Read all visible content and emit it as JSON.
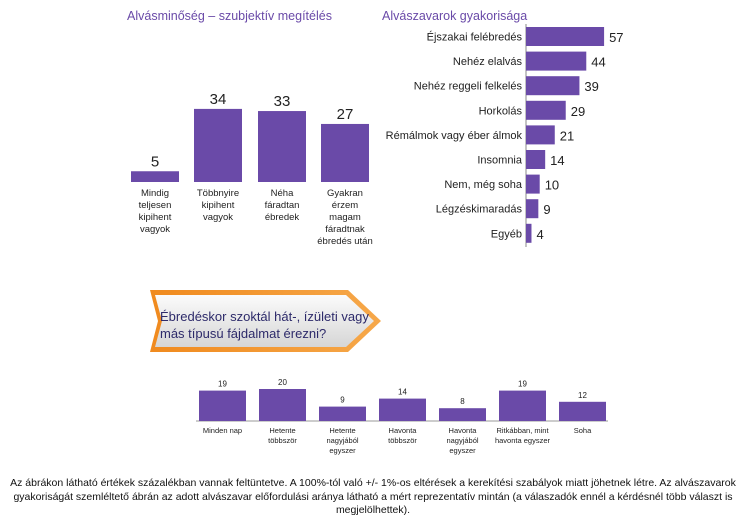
{
  "color_bar": "#6a4aa8",
  "chart_data": [
    {
      "type": "bar",
      "title": "Alvásminőség – szubjektív megítélés",
      "categories": [
        "Mindig teljesen kipihent vagyok",
        "Többnyire kipihent vagyok",
        "Néha fáradtan ébredek",
        "Gyakran érzem magam fáradtnak ébredés után"
      ],
      "category_lines": [
        [
          "Mindig",
          "teljesen",
          "kipihent",
          "vagyok"
        ],
        [
          "Többnyire",
          "kipihent",
          "vagyok"
        ],
        [
          "Néha",
          "fáradtan",
          "ébredek"
        ],
        [
          "Gyakran",
          "érzem",
          "magam",
          "fáradtnak",
          "ébredés után"
        ]
      ],
      "values": [
        5,
        34,
        33,
        27
      ]
    },
    {
      "type": "bar",
      "orientation": "horizontal",
      "title": "Alvászavarok gyakorisága",
      "categories": [
        "Éjszakai felébredés",
        "Nehéz elalvás",
        "Nehéz reggeli felkelés",
        "Horkolás",
        "Rémálmok vagy éber álmok",
        "Insomnia",
        "Nem, még soha",
        "Légzéskimaradás",
        "Egyéb"
      ],
      "values": [
        57,
        44,
        39,
        29,
        21,
        14,
        10,
        9,
        4
      ]
    },
    {
      "type": "bar",
      "title": "Ébredéskor szoktál hát-, ízületi vagy más típusú fájdalmat érezni?",
      "categories": [
        "Minden nap",
        "Hetente többször",
        "Hetente nagyjából egyszer",
        "Havonta többször",
        "Havonta nagyjából egyszer",
        "Ritkábban, mint havonta egyszer",
        "Soha"
      ],
      "category_lines": [
        [
          "Minden nap"
        ],
        [
          "Hetente",
          "többször"
        ],
        [
          "Hetente",
          "nagyjából",
          "egyszer"
        ],
        [
          "Havonta",
          "többször"
        ],
        [
          "Havonta",
          "nagyjából",
          "egyszer"
        ],
        [
          "Ritkábban, mint",
          "havonta egyszer"
        ],
        [
          "Soha"
        ]
      ],
      "values": [
        19,
        20,
        9,
        14,
        8,
        19,
        12
      ]
    }
  ],
  "footnote": "Az ábrákon látható értékek százalékban vannak feltüntetve. A 100%-tól való +/- 1%-os eltérések a kerekítési szabályok miatt jöhetnek létre. Az alvászavarok gyakoriságát szemléltető ábrán az adott alvászavar előfordulási aránya látható a mért reprezentatív mintán (a válaszadók ennél a kérdésnél több választ is megjelölhettek)."
}
